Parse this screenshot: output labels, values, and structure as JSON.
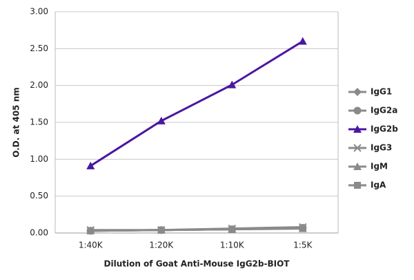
{
  "chart_data": {
    "type": "line",
    "x_label": "Dilution of Goat Anti-Mouse IgG2b-BIOT",
    "y_label": "O.D. at 405 nm",
    "categories": [
      "1:40K",
      "1:20K",
      "1:10K",
      "1:5K"
    ],
    "series": [
      {
        "name": "IgG1",
        "color": "#8a8a8a",
        "marker": "diamond",
        "values": [
          0.03,
          0.04,
          0.05,
          0.07
        ]
      },
      {
        "name": "IgG2a",
        "color": "#8a8a8a",
        "marker": "circle",
        "values": [
          0.03,
          0.04,
          0.05,
          0.07
        ]
      },
      {
        "name": "IgG2b",
        "color": "#4b17a0",
        "marker": "triangle",
        "values": [
          0.91,
          1.52,
          2.01,
          2.6
        ]
      },
      {
        "name": "IgG3",
        "color": "#8a8a8a",
        "marker": "x",
        "values": [
          0.04,
          0.04,
          0.06,
          0.08
        ]
      },
      {
        "name": "IgM",
        "color": "#8a8a8a",
        "marker": "triangle",
        "values": [
          0.03,
          0.04,
          0.05,
          0.06
        ]
      },
      {
        "name": "IgA",
        "color": "#8a8a8a",
        "marker": "square",
        "values": [
          0.03,
          0.04,
          0.05,
          0.07
        ]
      }
    ],
    "ylim": [
      0,
      3
    ],
    "yticks": [
      {
        "value": 0,
        "label": "0.00"
      },
      {
        "value": 0.5,
        "label": "0.50"
      },
      {
        "value": 1,
        "label": "1.00"
      },
      {
        "value": 1.5,
        "label": "1.50"
      },
      {
        "value": 2,
        "label": "2.00"
      },
      {
        "value": 2.5,
        "label": "2.50"
      },
      {
        "value": 3,
        "label": "3.00"
      }
    ],
    "grid": true
  }
}
